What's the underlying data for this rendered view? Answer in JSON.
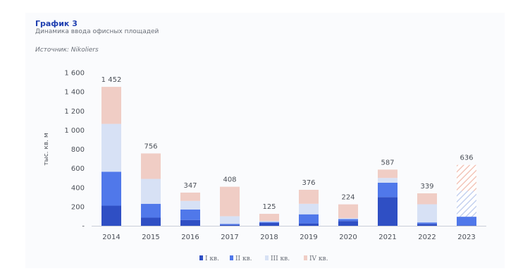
{
  "header": {
    "title": "График 3",
    "subtitle": "Динамика ввода офисных площадей",
    "source": "Источник: Nikoliers"
  },
  "colors": {
    "q1": "#2f4fc4",
    "q2": "#5078ea",
    "q3": "#d7e1f5",
    "q4": "#f0cdc5",
    "hatch_q3": "#b7c7ec",
    "hatch_q4": "#f0b9ab"
  },
  "chart_data": {
    "type": "bar",
    "stacked": true,
    "ylabel": "тыс. кв. м",
    "ylim": [
      0,
      1600
    ],
    "yticks": [
      0,
      200,
      400,
      600,
      800,
      1000,
      1200,
      1400,
      1600
    ],
    "ytick_labels": [
      "-",
      "200",
      "400",
      "600",
      "800",
      "1 000",
      "1 200",
      "1 400",
      "1 600"
    ],
    "categories": [
      "2014",
      "2015",
      "2016",
      "2017",
      "2018",
      "2019",
      "2020",
      "2021",
      "2022",
      "2023"
    ],
    "totals": [
      1452,
      756,
      347,
      408,
      125,
      376,
      224,
      587,
      339,
      636
    ],
    "total_labels": [
      "1 452",
      "756",
      "347",
      "408",
      "125",
      "376",
      "224",
      "587",
      "339",
      "636"
    ],
    "series": [
      {
        "name": "I кв.",
        "values": [
          210,
          85,
          60,
          10,
          30,
          25,
          50,
          300,
          20,
          5
        ]
      },
      {
        "name": "II кв.",
        "values": [
          355,
          145,
          110,
          10,
          10,
          95,
          20,
          150,
          15,
          90
        ]
      },
      {
        "name": "III кв.",
        "values": [
          500,
          260,
          90,
          80,
          10,
          110,
          10,
          50,
          190,
          270
        ]
      },
      {
        "name": "IV кв.",
        "values": [
          387,
          266,
          87,
          308,
          75,
          146,
          144,
          87,
          114,
          271
        ]
      }
    ],
    "hatched_category": "2023",
    "legend": "bottom-center",
    "grid": false
  }
}
